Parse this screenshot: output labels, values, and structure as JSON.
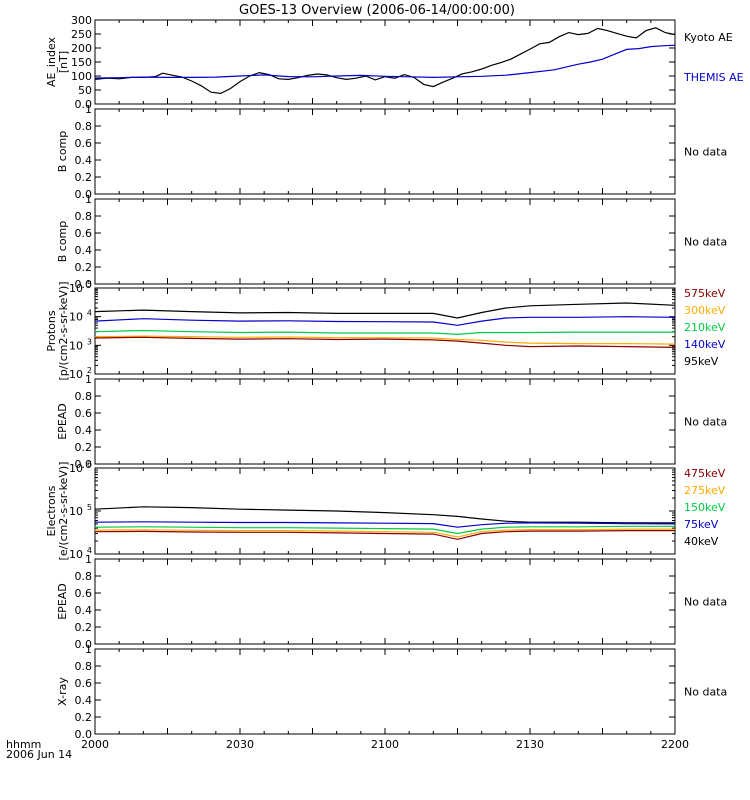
{
  "title": "GOES-13 Overview (2006-06-14/00:00:00)",
  "x_axis": {
    "label_line1": "hhmm",
    "label_line2": "2006 Jun 14",
    "tick_labels": [
      "2000",
      "2030",
      "2100",
      "2130",
      "2200"
    ]
  },
  "chart_data": [
    {
      "type": "line",
      "ylabel": [
        "AE_index",
        "[nT]"
      ],
      "ylim": [
        0,
        300
      ],
      "yticks": [
        0,
        50,
        100,
        150,
        200,
        250,
        300
      ],
      "x_unit": "minutes after 20:00 UT",
      "series": [
        {
          "name": "Kyoto AE",
          "color": "#000000",
          "x": [
            0,
            5,
            10,
            15,
            20,
            25,
            28,
            32,
            36,
            40,
            44,
            48,
            52,
            56,
            60,
            64,
            68,
            72,
            76,
            80,
            84,
            88,
            92,
            96,
            100,
            104,
            108,
            112,
            116,
            120,
            124,
            128,
            132,
            136,
            140,
            144,
            148,
            152,
            156,
            160,
            164,
            168,
            172,
            176,
            180,
            184,
            188,
            192,
            196,
            200,
            204,
            208,
            212,
            216,
            220,
            224,
            228,
            232,
            236,
            240
          ],
          "y": [
            88,
            92,
            90,
            95,
            95,
            98,
            110,
            103,
            96,
            82,
            65,
            42,
            38,
            55,
            80,
            100,
            112,
            105,
            90,
            88,
            94,
            102,
            107,
            104,
            94,
            88,
            92,
            100,
            86,
            98,
            92,
            105,
            95,
            70,
            62,
            78,
            92,
            108,
            115,
            125,
            138,
            148,
            160,
            178,
            196,
            215,
            220,
            240,
            255,
            248,
            252,
            270,
            262,
            252,
            242,
            236,
            262,
            272,
            255,
            248
          ]
        },
        {
          "name": "THEMIS AE",
          "color": "#0000cc",
          "x": [
            0,
            10,
            20,
            30,
            40,
            50,
            60,
            70,
            80,
            90,
            100,
            110,
            120,
            130,
            140,
            150,
            160,
            170,
            180,
            190,
            200,
            205,
            210,
            215,
            220,
            225,
            230,
            235,
            240
          ],
          "y": [
            93,
            94,
            96,
            95,
            95,
            96,
            100,
            104,
            98,
            97,
            100,
            102,
            99,
            97,
            95,
            97,
            99,
            103,
            112,
            122,
            142,
            150,
            160,
            178,
            195,
            198,
            205,
            208,
            210
          ]
        }
      ]
    },
    {
      "type": "line",
      "ylabel": [
        "B comp"
      ],
      "ylim": [
        0.0,
        1.0
      ],
      "yticks": [
        0.0,
        0.2,
        0.4,
        0.6,
        0.8,
        1.0
      ],
      "series": [],
      "annotation": "No data"
    },
    {
      "type": "line",
      "ylabel": [
        "B comp"
      ],
      "ylim": [
        0.0,
        1.0
      ],
      "yticks": [
        0.0,
        0.2,
        0.4,
        0.6,
        0.8,
        1.0
      ],
      "series": [],
      "annotation": "No data"
    },
    {
      "type": "line",
      "ylabel": [
        "Protons",
        "[p/(cm2-s-sr-keV)]"
      ],
      "yscale": "log",
      "ylim": [
        100,
        100000
      ],
      "yticks": [
        100,
        1000,
        10000,
        100000
      ],
      "ytick_labels": [
        "10^2",
        "10^3",
        "10^4",
        "10^5"
      ],
      "series": [
        {
          "name": "95keV",
          "color": "#000000",
          "x": [
            0,
            20,
            40,
            60,
            80,
            100,
            120,
            140,
            150,
            160,
            170,
            180,
            200,
            220,
            240
          ],
          "y": [
            15000,
            17000,
            15000,
            13500,
            14000,
            13000,
            13000,
            13000,
            9000,
            14000,
            20000,
            24000,
            27000,
            30000,
            25000
          ]
        },
        {
          "name": "140keV",
          "color": "#0000cc",
          "x": [
            0,
            20,
            40,
            60,
            80,
            100,
            120,
            140,
            150,
            160,
            170,
            180,
            200,
            220,
            240
          ],
          "y": [
            7000,
            8500,
            7500,
            7000,
            7200,
            6800,
            6700,
            6500,
            5000,
            7000,
            9000,
            9500,
            9500,
            10000,
            9500
          ]
        },
        {
          "name": "210keV",
          "color": "#00cc44",
          "x": [
            0,
            20,
            40,
            60,
            80,
            100,
            120,
            140,
            150,
            160,
            170,
            180,
            200,
            220,
            240
          ],
          "y": [
            3000,
            3300,
            3000,
            2800,
            2900,
            2700,
            2700,
            2700,
            2400,
            2800,
            2800,
            2800,
            2900,
            2900,
            2900
          ]
        },
        {
          "name": "300keV",
          "color": "#ffaa00",
          "x": [
            0,
            20,
            40,
            60,
            80,
            100,
            120,
            140,
            150,
            160,
            170,
            180,
            200,
            220,
            240
          ],
          "y": [
            2000,
            2100,
            2000,
            1900,
            1950,
            1850,
            1850,
            1800,
            1600,
            1500,
            1300,
            1200,
            1150,
            1150,
            1100
          ]
        },
        {
          "name": "575keV",
          "color": "#8b0000",
          "x": [
            0,
            20,
            40,
            60,
            80,
            100,
            120,
            140,
            150,
            160,
            170,
            180,
            200,
            220,
            240
          ],
          "y": [
            1800,
            1900,
            1750,
            1650,
            1700,
            1600,
            1650,
            1550,
            1400,
            1200,
            1000,
            900,
            950,
            900,
            850
          ]
        }
      ]
    },
    {
      "type": "line",
      "ylabel": [
        "EPEAD"
      ],
      "ylim": [
        0.0,
        1.0
      ],
      "yticks": [
        0.0,
        0.2,
        0.4,
        0.6,
        0.8,
        1.0
      ],
      "series": [],
      "annotation": "No data"
    },
    {
      "type": "line",
      "ylabel": [
        "Electrons",
        "[e/(cm2-s-sr-keV)]"
      ],
      "yscale": "log",
      "ylim": [
        10000,
        1000000
      ],
      "yticks": [
        10000,
        100000,
        1000000
      ],
      "ytick_labels": [
        "10^4",
        "10^5",
        "10^6"
      ],
      "series": [
        {
          "name": "40keV",
          "color": "#000000",
          "x": [
            0,
            20,
            40,
            60,
            80,
            100,
            120,
            140,
            150,
            160,
            170,
            180,
            200,
            220,
            240
          ],
          "y": [
            110000,
            125000,
            120000,
            110000,
            105000,
            100000,
            92000,
            82000,
            75000,
            65000,
            58000,
            55000,
            55000,
            53000,
            53000
          ]
        },
        {
          "name": "75keV",
          "color": "#0000cc",
          "x": [
            0,
            20,
            40,
            60,
            80,
            100,
            120,
            140,
            150,
            160,
            170,
            180,
            200,
            220,
            240
          ],
          "y": [
            55000,
            56000,
            55000,
            54000,
            54000,
            53000,
            52000,
            51000,
            42000,
            48000,
            52000,
            53000,
            52000,
            51000,
            50000
          ]
        },
        {
          "name": "150keV",
          "color": "#00cc44",
          "x": [
            0,
            20,
            40,
            60,
            80,
            100,
            120,
            140,
            150,
            160,
            170,
            180,
            200,
            220,
            240
          ],
          "y": [
            42000,
            43000,
            42000,
            41000,
            41000,
            40000,
            39000,
            38000,
            30000,
            38000,
            42000,
            43000,
            43000,
            44000,
            44000
          ]
        },
        {
          "name": "275keV",
          "color": "#ffaa00",
          "x": [
            0,
            20,
            40,
            60,
            80,
            100,
            120,
            140,
            150,
            160,
            170,
            180,
            200,
            220,
            240
          ],
          "y": [
            36000,
            36500,
            35500,
            35000,
            35000,
            34000,
            33000,
            32000,
            25000,
            33000,
            36000,
            37000,
            37000,
            38000,
            38000
          ]
        },
        {
          "name": "475keV",
          "color": "#8b0000",
          "x": [
            0,
            20,
            40,
            60,
            80,
            100,
            120,
            140,
            150,
            160,
            170,
            180,
            200,
            220,
            240
          ],
          "y": [
            33000,
            33500,
            32500,
            32000,
            32000,
            31000,
            30000,
            29000,
            22000,
            30000,
            33000,
            34000,
            34000,
            35000,
            35000
          ]
        }
      ]
    },
    {
      "type": "line",
      "ylabel": [
        "EPEAD"
      ],
      "ylim": [
        0.0,
        1.0
      ],
      "yticks": [
        0.0,
        0.2,
        0.4,
        0.6,
        0.8,
        1.0
      ],
      "series": [],
      "annotation": "No data"
    },
    {
      "type": "line",
      "ylabel": [
        "X-ray"
      ],
      "ylim": [
        0.0,
        1.0
      ],
      "yticks": [
        0.0,
        0.2,
        0.4,
        0.6,
        0.8,
        1.0
      ],
      "series": [],
      "annotation": "No data"
    }
  ]
}
